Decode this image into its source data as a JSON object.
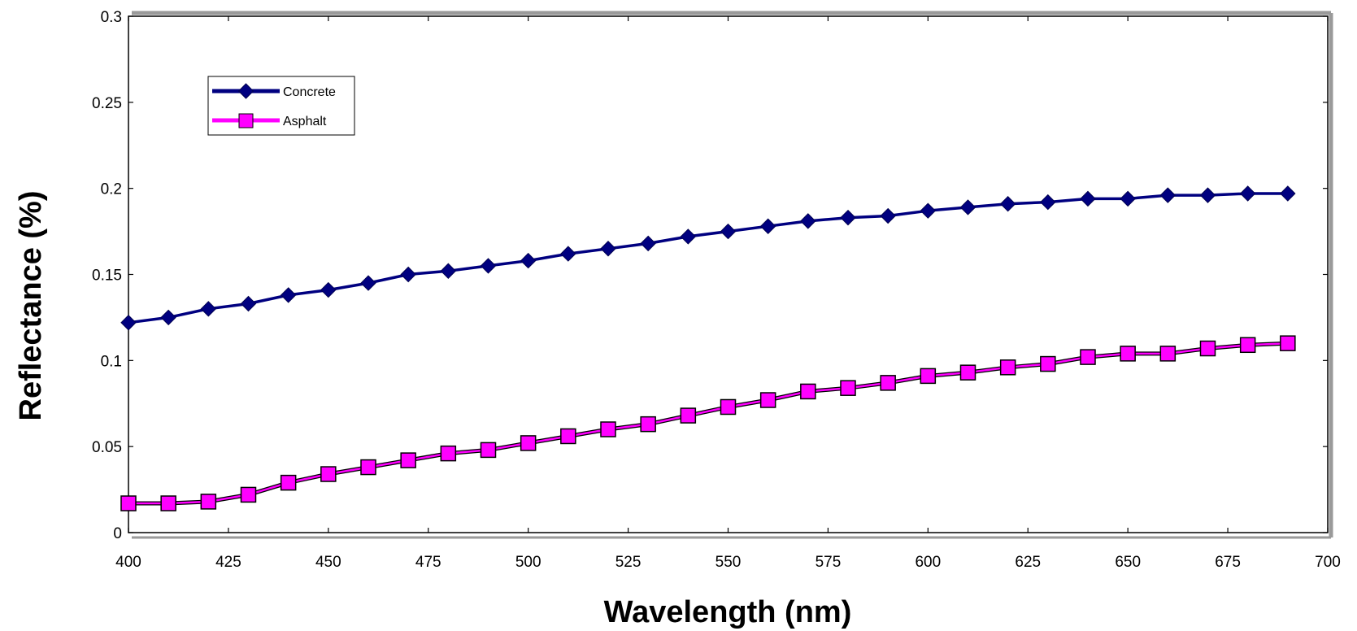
{
  "chart_data": {
    "type": "line",
    "title": "",
    "xlabel": "Wavelength (nm)",
    "ylabel": "Reflectance (%)",
    "xlim": [
      400,
      700
    ],
    "ylim": [
      0,
      0.3
    ],
    "x_ticks": [
      400,
      425,
      450,
      475,
      500,
      525,
      550,
      575,
      600,
      625,
      650,
      675,
      700
    ],
    "y_ticks": [
      0,
      0.05,
      0.1,
      0.15,
      0.2,
      0.25,
      0.3
    ],
    "grid": false,
    "legend_position": "top-left",
    "x": [
      400,
      410,
      420,
      430,
      440,
      450,
      460,
      470,
      480,
      490,
      500,
      510,
      520,
      530,
      540,
      550,
      560,
      570,
      580,
      590,
      600,
      610,
      620,
      630,
      640,
      650,
      660,
      670,
      680,
      690
    ],
    "series": [
      {
        "name": "Concrete",
        "color": "#000080",
        "marker": "diamond",
        "values": [
          0.122,
          0.125,
          0.13,
          0.133,
          0.138,
          0.141,
          0.145,
          0.15,
          0.152,
          0.155,
          0.158,
          0.162,
          0.165,
          0.168,
          0.172,
          0.175,
          0.178,
          0.181,
          0.183,
          0.184,
          0.187,
          0.189,
          0.191,
          0.192,
          0.194,
          0.194,
          0.196,
          0.196,
          0.197,
          0.197
        ]
      },
      {
        "name": "Asphalt",
        "color": "#ff00ff",
        "marker": "square",
        "values": [
          0.017,
          0.017,
          0.018,
          0.022,
          0.029,
          0.034,
          0.038,
          0.042,
          0.046,
          0.048,
          0.052,
          0.056,
          0.06,
          0.063,
          0.068,
          0.073,
          0.077,
          0.082,
          0.084,
          0.087,
          0.091,
          0.093,
          0.096,
          0.098,
          0.102,
          0.104,
          0.104,
          0.107,
          0.109,
          0.11
        ]
      }
    ]
  }
}
